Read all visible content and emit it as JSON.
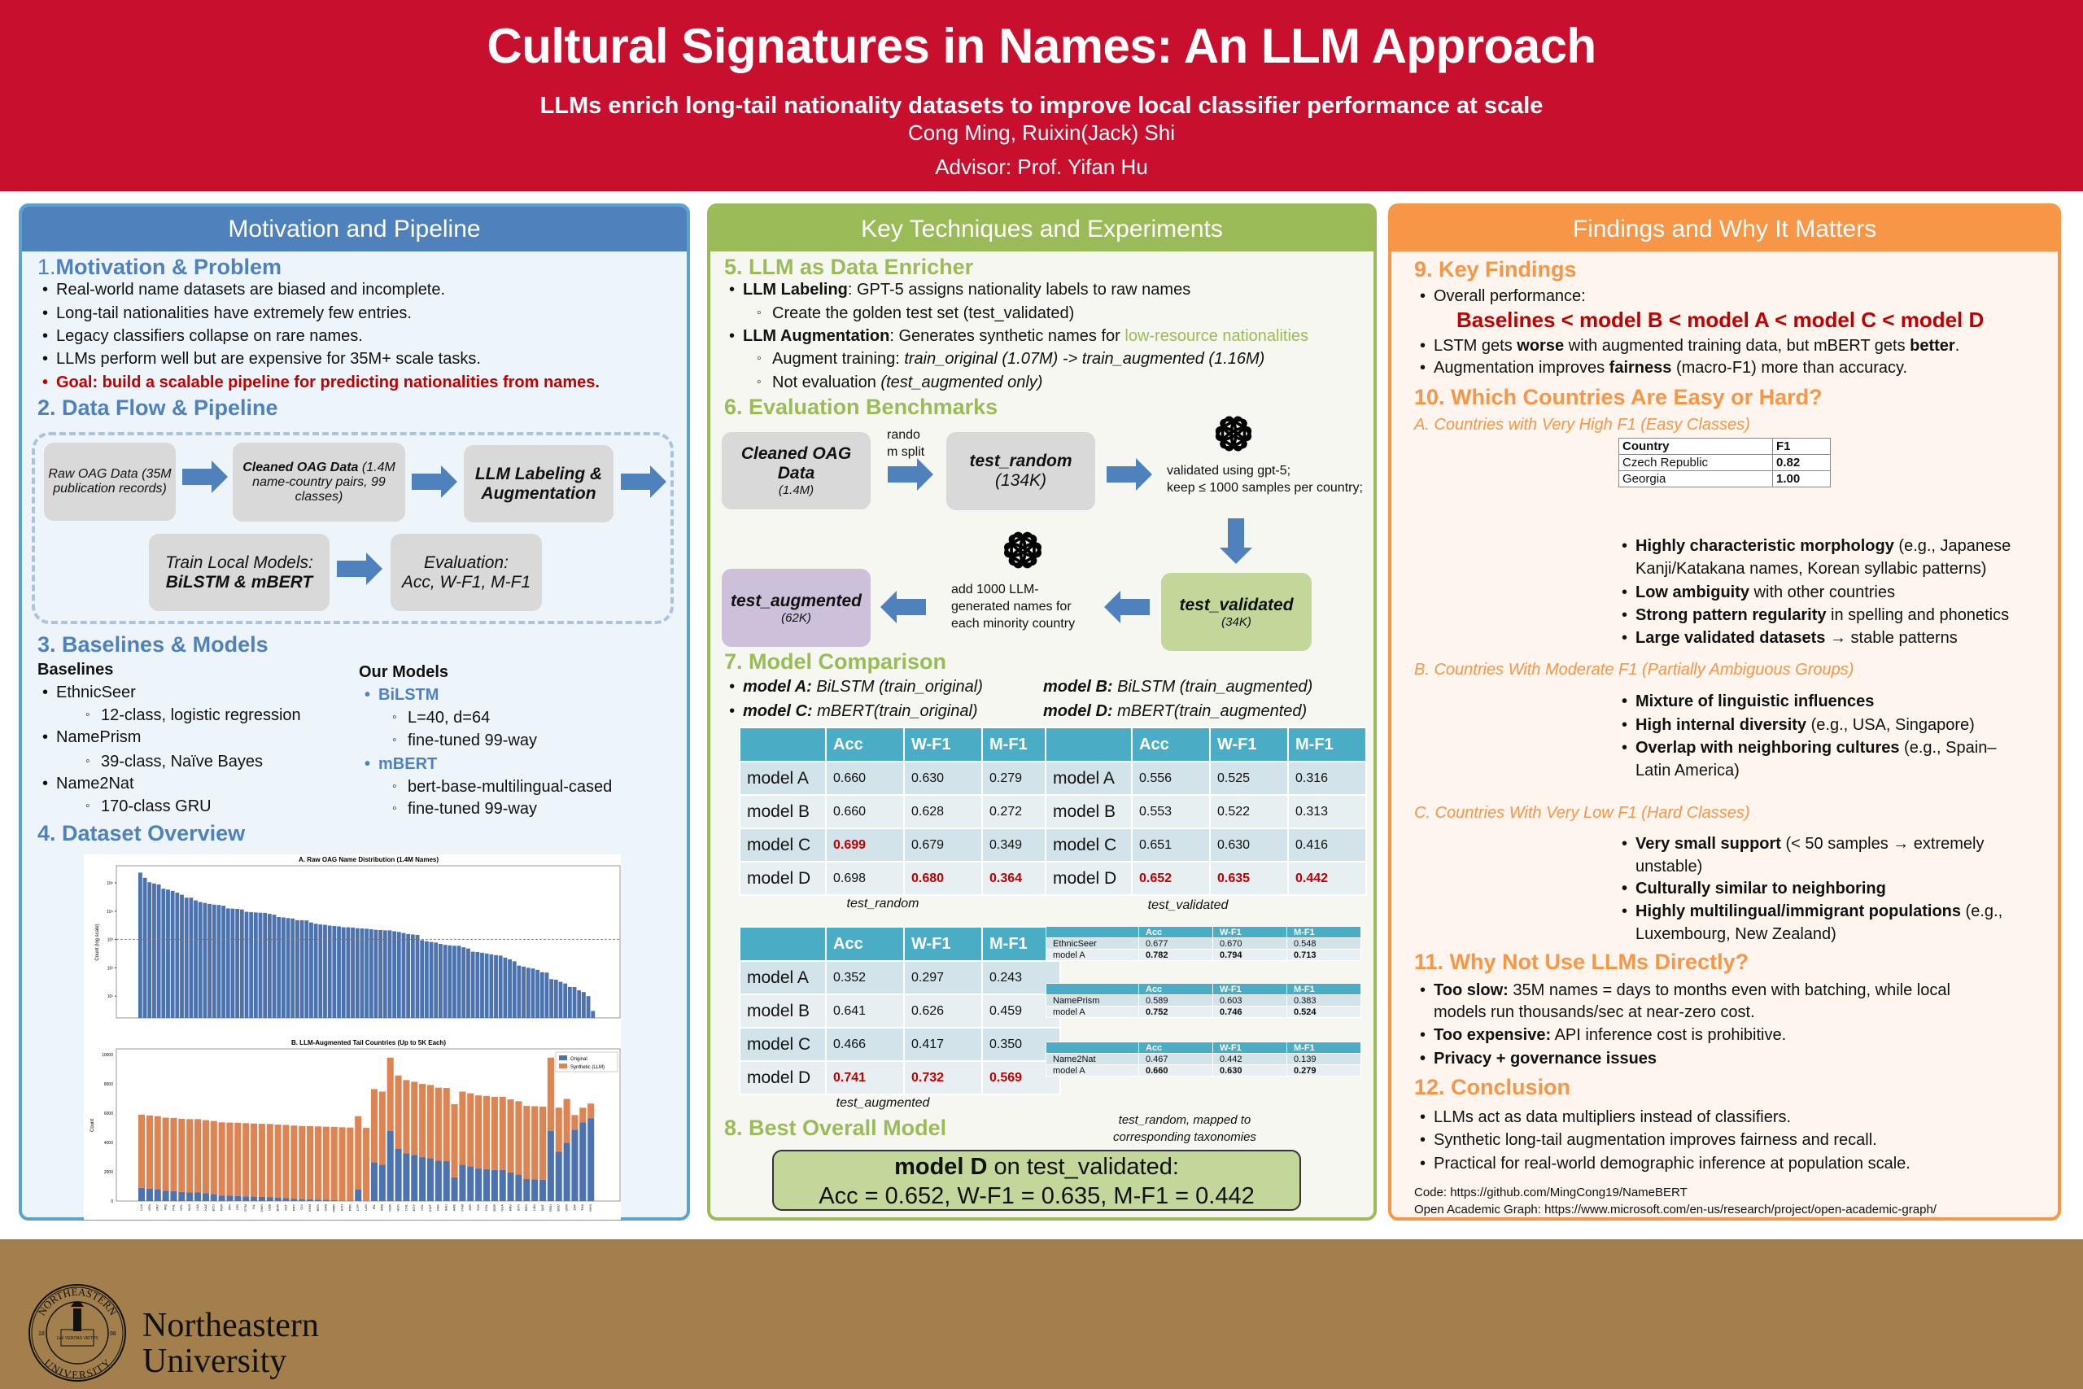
{
  "header": {
    "title": "Cultural Signatures in Names: An LLM Approach",
    "subtitle": "LLMs enrich long-tail nationality datasets to improve local classifier performance at scale",
    "authors": "Cong Ming, Ruixin(Jack) Shi",
    "advisor": "Advisor: Prof. Yifan Hu"
  },
  "colors": {
    "header_red": "#C8102E",
    "blue": "#4F81BD",
    "green": "#9BBB59",
    "orange": "#F79646",
    "table_header": "#4BACC6",
    "highlight_red": "#C00000",
    "footer_gold": "#A3804B"
  },
  "col1": {
    "title": "Motivation and Pipeline",
    "s1": {
      "num": "1.",
      "title": "Motivation & Problem",
      "items": [
        "Real-world name datasets are biased and incomplete.",
        "Long-tail nationalities have extremely few entries.",
        "Legacy classifiers collapse on rare names.",
        "LLMs perform well but are expensive for 35M+ scale tasks.",
        "Goal: build a scalable pipeline for predicting nationalities from names."
      ]
    },
    "s2": {
      "title": "2. Data Flow & Pipeline",
      "raw": "Raw OAG Data (35M publication records)",
      "cleaned_b": "Cleaned OAG Data",
      "cleaned_t": " (1.4M name-country pairs, 99 classes)",
      "llm": "LLM Labeling & Augmentation",
      "train_1": "Train Local Models:",
      "train_2": "BiLSTM & mBERT",
      "eval_1": "Evaluation:",
      "eval_2": "Acc, W-F1, M-F1"
    },
    "s3": {
      "title": "3. Baselines & Models",
      "baselines": "Baselines",
      "b1": "EthnicSeer",
      "b1s": "12-class, logistic regression",
      "b2": "NamePrism",
      "b2s": "39-class, Naïve Bayes",
      "b3": "Name2Nat",
      "b3s": "170-class GRU",
      "ours": "Our Models",
      "m1": "BiLSTM",
      "m1a": "L=40, d=64",
      "m1b": "fine-tuned 99-way",
      "m2": "mBERT",
      "m2a": "bert-base-multilingual-cased",
      "m2b": "fine-tuned 99-way"
    },
    "s4": {
      "title": "4. Dataset Overview"
    }
  },
  "chart_data": [
    {
      "type": "bar",
      "title": "A. Raw OAG Name Distribution (1.4M Names)",
      "ylabel": "Count (log scale)",
      "yscale": "log",
      "ylim": [
        1.7,
        400000
      ],
      "yticks": [
        "10¹",
        "10²",
        "10³",
        "10⁴",
        "10⁵"
      ],
      "reference_line": 1000,
      "grid": false,
      "values": [
        230000,
        150000,
        105000,
        95000,
        88000,
        62000,
        58000,
        52000,
        45000,
        38000,
        30000,
        30000,
        24000,
        21000,
        19500,
        18000,
        17000,
        16500,
        15500,
        12500,
        12300,
        12000,
        11500,
        9500,
        9200,
        9000,
        8800,
        8700,
        8000,
        7500,
        6200,
        6000,
        5700,
        5500,
        4800,
        4800,
        4700,
        4000,
        3600,
        3400,
        3300,
        3100,
        3000,
        2900,
        2700,
        2700,
        2650,
        2500,
        2450,
        2400,
        2300,
        2200,
        2150,
        2100,
        2100,
        1950,
        1850,
        1700,
        1550,
        1500,
        1450,
        950,
        870,
        820,
        780,
        700,
        650,
        620,
        600,
        600,
        530,
        480,
        370,
        360,
        340,
        320,
        300,
        280,
        270,
        230,
        200,
        170,
        120,
        110,
        100,
        95,
        85,
        70,
        68,
        40,
        38,
        32,
        28,
        21,
        21,
        16,
        14,
        10,
        3
      ]
    },
    {
      "type": "bar",
      "stacked": true,
      "title": "B. LLM-Augmented Tail Countries (Up to 5K Each)",
      "ylabel": "Count",
      "ylim": [
        0,
        10400
      ],
      "yticks": [
        "0",
        "2000",
        "4000",
        "6000",
        "8000",
        "10000"
      ],
      "legend": "top-right",
      "grid": false,
      "categories": [
        "LUX",
        "VEN",
        "URY",
        "IRQ",
        "PHL",
        "NPL",
        "BLR",
        "LKA",
        "KAZ",
        "ECU",
        "PER",
        "IRN",
        "CRI",
        "GTM",
        "ISL",
        "OMN",
        "UZB",
        "BHR",
        "MLT",
        "PRY",
        "CIV",
        "KHM",
        "BRN",
        "GAB",
        "MMR",
        "ETH",
        "PRK",
        "CYP",
        "LAO",
        "IRL",
        "SRB",
        "NOR",
        "HUN",
        "CHL",
        "EGY",
        "NZL",
        "KWT",
        "PAK",
        "SAU",
        "ARE",
        "VNM",
        "JOR",
        "SVK",
        "COL",
        "BGR",
        "NGA",
        "HRV",
        "SVN",
        "KEN",
        "LBN",
        "QAT",
        "ROU",
        "BGD",
        "UKR",
        "ZAF",
        "THA",
        "MYS"
      ],
      "series": [
        {
          "name": "Original",
          "color": "#4C72B0",
          "values": [
            900,
            850,
            800,
            700,
            680,
            620,
            600,
            600,
            530,
            470,
            380,
            360,
            350,
            320,
            300,
            280,
            270,
            220,
            200,
            160,
            130,
            120,
            100,
            80,
            70,
            40,
            20,
            800,
            0,
            2650,
            2480,
            4800,
            3580,
            3270,
            3150,
            3000,
            2930,
            2750,
            2730,
            1620,
            2480,
            2360,
            2220,
            2180,
            2120,
            2120,
            1950,
            1820,
            1500,
            1480,
            1450,
            4800,
            3380,
            3980,
            4880,
            5380,
            5660
          ]
        },
        {
          "name": "Synthetic (LLM)",
          "color": "#DD8452",
          "values": [
            5000,
            5000,
            5000,
            5000,
            5000,
            5000,
            5000,
            5000,
            5000,
            5000,
            5000,
            5000,
            5000,
            5000,
            5000,
            5000,
            5000,
            5000,
            5000,
            5000,
            5000,
            5000,
            5000,
            5000,
            5000,
            5000,
            5000,
            5000,
            5000,
            5000,
            5000,
            5000,
            5000,
            5000,
            5000,
            5000,
            5000,
            5000,
            5000,
            5000,
            5000,
            5000,
            5000,
            5000,
            5000,
            5000,
            5000,
            5000,
            5000,
            5000,
            5000,
            5000,
            3000,
            3000,
            1000,
            1000,
            1000
          ]
        }
      ]
    }
  ],
  "col2": {
    "title": "Key Techniques and Experiments",
    "s5": {
      "title": "5. LLM as Data Enricher",
      "l1b": "LLM Labeling",
      "l1t": ": GPT-5 assigns nationality labels to raw names",
      "l1s": "Create the golden test set (test_validated)",
      "l2b": "LLM Augmentation",
      "l2t": ": Generates synthetic names for ",
      "l2g": "low-resource nationalities",
      "l2s1a": "Augment training: ",
      "l2s1b": "train_original (1.07M) -> train_augmented (1.16M)",
      "l2s2a": "Not evaluation ",
      "l2s2b": "(test_augmented only)"
    },
    "s6": {
      "title": "6. Evaluation Benchmarks",
      "cleaned_1": "Cleaned OAG",
      "cleaned_2": "Data",
      "cleaned_3": "(1.4M)",
      "split_1": "rando",
      "split_2": "m split",
      "random_1": "test_random",
      "random_2": "(134K)",
      "validate_1": "validated using gpt-5;",
      "validate_2": "keep ≤ 1000 samples per country;",
      "validated_1": "test_validated",
      "validated_2": "(34K)",
      "add_1": "add 1000 LLM-",
      "add_2": "generated names for",
      "add_3": "each minority country",
      "augmented_1": "test_augmented",
      "augmented_2": "(62K)"
    },
    "s7": {
      "title": "7. Model Comparison",
      "ma_b": "model A:",
      "ma_t": " BiLSTM (train_original)",
      "mb_b": "model B:",
      "mb_t": " BiLSTM (train_augmented)",
      "mc_b": "model C:",
      "mc_t": " mBERT(train_original)",
      "md_b": "model D:",
      "md_t": " mBERT(train_augmented)",
      "tables": [
        {
          "caption": "test_random",
          "header": [
            "",
            "Acc",
            "W-F1",
            "M-F1"
          ],
          "rows": [
            {
              "c": [
                "model A",
                "0.660",
                "0.630",
                "0.279"
              ],
              "red": []
            },
            {
              "c": [
                "model B",
                "0.660",
                "0.628",
                "0.272"
              ],
              "red": []
            },
            {
              "c": [
                "model C",
                "0.699",
                "0.679",
                "0.349"
              ],
              "red": [
                1
              ]
            },
            {
              "c": [
                "model D",
                "0.698",
                "0.680",
                "0.364"
              ],
              "red": [
                2,
                3
              ]
            }
          ]
        },
        {
          "caption": "test_validated",
          "header": [
            "",
            "Acc",
            "W-F1",
            "M-F1"
          ],
          "rows": [
            {
              "c": [
                "model A",
                "0.556",
                "0.525",
                "0.316"
              ],
              "red": []
            },
            {
              "c": [
                "model B",
                "0.553",
                "0.522",
                "0.313"
              ],
              "red": []
            },
            {
              "c": [
                "model C",
                "0.651",
                "0.630",
                "0.416"
              ],
              "red": []
            },
            {
              "c": [
                "model D",
                "0.652",
                "0.635",
                "0.442"
              ],
              "red": [
                1,
                2,
                3
              ]
            }
          ]
        },
        {
          "caption": "test_augmented",
          "header": [
            "",
            "Acc",
            "W-F1",
            "M-F1"
          ],
          "rows": [
            {
              "c": [
                "model A",
                "0.352",
                "0.297",
                "0.243"
              ],
              "red": []
            },
            {
              "c": [
                "model B",
                "0.641",
                "0.626",
                "0.459"
              ],
              "red": []
            },
            {
              "c": [
                "model C",
                "0.466",
                "0.417",
                "0.350"
              ],
              "red": []
            },
            {
              "c": [
                "model D",
                "0.741",
                "0.732",
                "0.569"
              ],
              "red": [
                1,
                2,
                3
              ]
            }
          ]
        }
      ],
      "baseline_tables": [
        {
          "header": [
            "",
            "Acc",
            "W-F1",
            "M-F1"
          ],
          "rows": [
            [
              "EthnicSeer",
              "0.677",
              "0.670",
              "0.548"
            ],
            [
              "model A",
              "0.782",
              "0.794",
              "0.713"
            ]
          ]
        },
        {
          "header": [
            "",
            "Acc",
            "W-F1",
            "M-F1"
          ],
          "rows": [
            [
              "NamePrism",
              "0.589",
              "0.603",
              "0.383"
            ],
            [
              "model A",
              "0.752",
              "0.746",
              "0.524"
            ]
          ]
        },
        {
          "header": [
            "",
            "Acc",
            "W-F1",
            "M-F1"
          ],
          "rows": [
            [
              "Name2Nat",
              "0.467",
              "0.442",
              "0.139"
            ],
            [
              "model A",
              "0.660",
              "0.630",
              "0.279"
            ]
          ]
        }
      ],
      "baseline_caption_1": "test_random, mapped to",
      "baseline_caption_2": "corresponding taxonomies"
    },
    "s8": {
      "title": "8. Best Overall Model",
      "line1_b": "model D",
      "line1_t": " on test_validated:",
      "line2": "Acc = 0.652, W-F1 = 0.635, M-F1 = 0.442"
    }
  },
  "col3": {
    "title": "Findings and Why It Matters",
    "s9": {
      "title": "9. Key Findings",
      "overall": "Overall performance:",
      "ranking": "Baselines < model B < model A < model C < model D",
      "l2a": "LSTM gets ",
      "l2b": "worse",
      "l2c": " with augmented training data, but mBERT gets ",
      "l2d": "better",
      "l2e": ".",
      "l3a": "Augmentation improves ",
      "l3b": "fairness",
      "l3c": " (macro-F1) more than accuracy."
    },
    "s10": {
      "title": "10. Which Countries Are Easy or Hard?",
      "a_title": "A. Countries with Very High F1 (Easy Classes)",
      "a_table_col1": [
        "Country",
        "Czech Republic",
        "Georgia"
      ],
      "a_table_col2": [
        "F1",
        "0.82",
        "1.00"
      ],
      "a1b": "Highly characteristic morphology",
      "a1t": " (e.g., Japanese",
      "a1t2": "Kanji/Katakana names, Korean syllabic patterns)",
      "a2b": "Low ambiguity",
      "a2t": " with other countries",
      "a3b": "Strong pattern regularity",
      "a3t": " in spelling and phonetics",
      "a4b": "Large validated datasets",
      "a4t": " → stable patterns",
      "b_title": "B. Countries With Moderate F1 (Partially Ambiguous Groups)",
      "b1b": "Mixture of linguistic influences",
      "b2b": "High internal diversity",
      "b2t": " (e.g., USA, Singapore)",
      "b3b": "Overlap with neighboring cultures",
      "b3t": " (e.g., Spain–",
      "b3t2": "Latin America)",
      "c_title": "C. Countries With Very Low F1 (Hard Classes)",
      "c1b": "Very small support",
      "c1t": " (< 50 samples → extremely",
      "c1t2": "unstable)",
      "c2b": "Culturally similar to neighboring",
      "c3b": "Highly multilingual/immigrant populations",
      "c3t": " (e.g.,",
      "c3t2": "Luxembourg, New Zealand)"
    },
    "s11": {
      "title": "11. Why Not Use LLMs Directly?",
      "l1b": "Too slow:",
      "l1t": " 35M names = days to months even with batching, while local",
      "l1t2": "models run thousands/sec at near-zero cost.",
      "l2b": "Too expensive:",
      "l2t": " API inference cost is prohibitive.",
      "l3b": "Privacy + governance issues"
    },
    "s12": {
      "title": "12. Conclusion",
      "items": [
        "LLMs act as data multipliers instead of classifiers.",
        "Synthetic long-tail augmentation improves fairness and recall.",
        "Practical for real-world demographic inference at population scale."
      ]
    },
    "code": "Code: https://github.com/MingCong19/NameBERT",
    "oag": "Open Academic Graph: https://www.microsoft.com/en-us/research/project/open-academic-graph/"
  },
  "footer": {
    "university_line1": "Northeastern",
    "university_line2": "University",
    "seal_text_top": "NORTHEASTERN",
    "seal_text_bottom": "UNIVERSITY",
    "seal_motto": "LVX VERITAS VIRTVS",
    "seal_year_left": "18",
    "seal_year_right": "98"
  }
}
